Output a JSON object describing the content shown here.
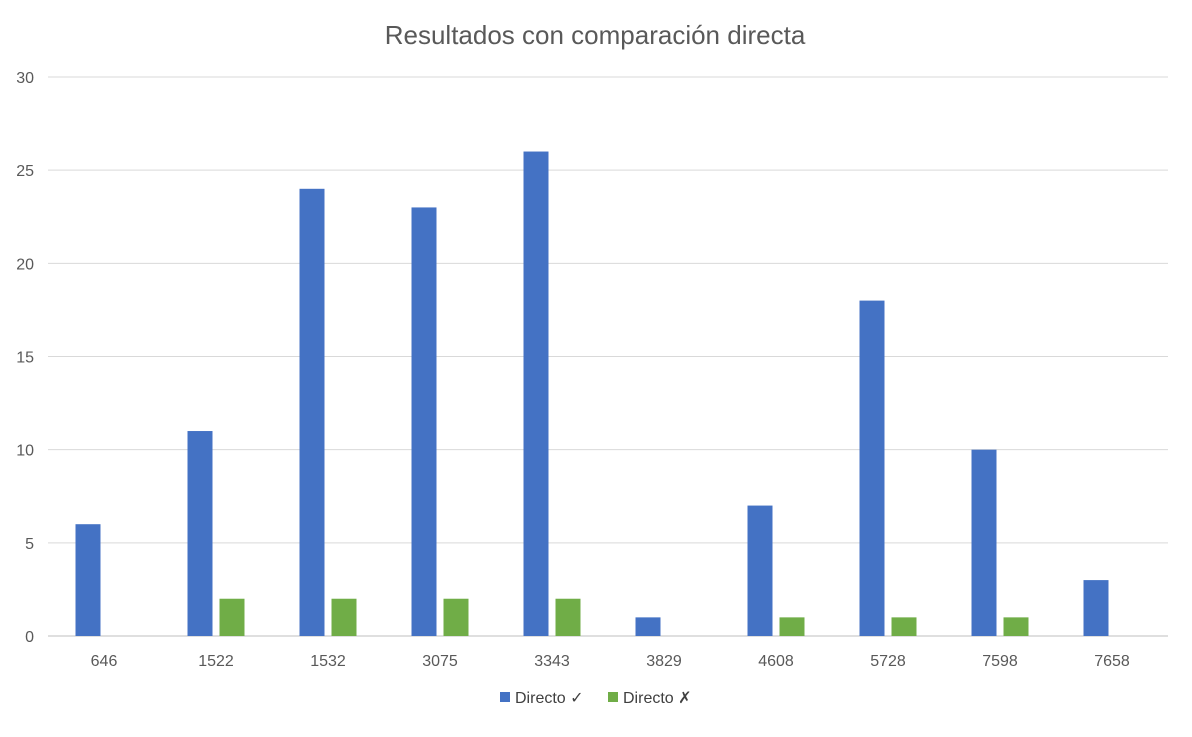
{
  "chart_data": {
    "type": "bar",
    "title": "Resultados con comparación directa",
    "xlabel": "",
    "ylabel": "",
    "categories": [
      "646",
      "1522",
      "1532",
      "3075",
      "3343",
      "3829",
      "4608",
      "5728",
      "7598",
      "7658"
    ],
    "series": [
      {
        "name": "Directo ✓",
        "color": "#4472c4",
        "values": [
          6,
          11,
          24,
          23,
          26,
          1,
          7,
          18,
          10,
          3
        ]
      },
      {
        "name": "Directo ✗",
        "color": "#70ad47",
        "values": [
          0,
          2,
          2,
          2,
          2,
          0,
          1,
          1,
          1,
          0
        ]
      }
    ],
    "ylim": [
      0,
      30
    ],
    "yticks": [
      "0",
      "5",
      "10",
      "15",
      "20",
      "25",
      "30"
    ],
    "grid": true,
    "legend_position": "bottom"
  }
}
